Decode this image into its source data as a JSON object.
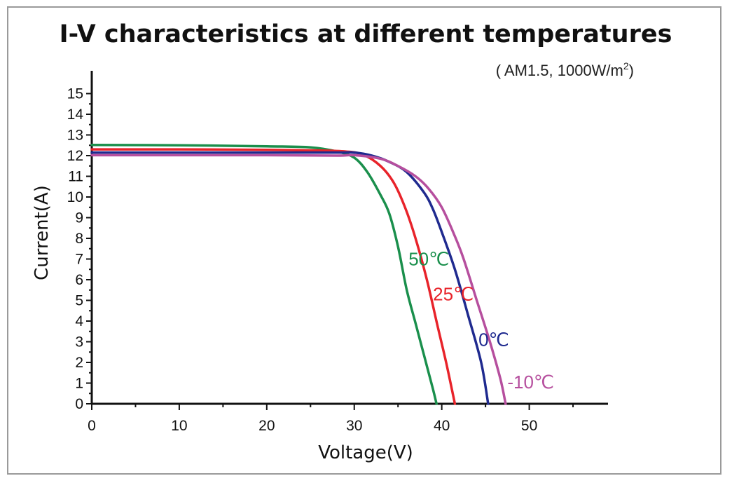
{
  "chart_data": {
    "type": "line",
    "title": "I-V characteristics at different temperatures",
    "subtitle": {
      "prefix": "( AM1.5,  1000W/m",
      "sup": "2",
      "suffix": ")"
    },
    "xlabel": "Voltage(V)",
    "ylabel": "Current(A)",
    "xlim": [
      0,
      59
    ],
    "ylim": [
      0,
      16
    ],
    "xticks": [
      0,
      10,
      20,
      30,
      40,
      50
    ],
    "xminor": [
      5,
      15,
      25,
      35,
      45,
      55
    ],
    "yticks": [
      0,
      1,
      2,
      3,
      4,
      5,
      6,
      7,
      8,
      9,
      10,
      11,
      12,
      13,
      14,
      15
    ],
    "series": [
      {
        "name": "50℃",
        "color": "#1a8f4c",
        "points": [
          [
            0,
            12.52
          ],
          [
            10,
            12.5
          ],
          [
            20,
            12.45
          ],
          [
            25,
            12.4
          ],
          [
            28,
            12.2
          ],
          [
            30,
            11.9
          ],
          [
            31.5,
            11.2
          ],
          [
            33,
            10.1
          ],
          [
            34,
            9.2
          ],
          [
            35,
            7.6
          ],
          [
            36,
            5.5
          ],
          [
            37,
            3.9
          ],
          [
            38,
            2.3
          ],
          [
            39,
            0.7
          ],
          [
            39.4,
            0
          ]
        ]
      },
      {
        "name": "25℃",
        "color": "#e8232a",
        "points": [
          [
            0,
            12.3
          ],
          [
            10,
            12.3
          ],
          [
            20,
            12.28
          ],
          [
            26,
            12.25
          ],
          [
            29,
            12.2
          ],
          [
            31,
            12.05
          ],
          [
            33,
            11.5
          ],
          [
            34.5,
            10.7
          ],
          [
            35.8,
            9.5
          ],
          [
            37,
            8.0
          ],
          [
            38.3,
            6.0
          ],
          [
            39.5,
            3.8
          ],
          [
            40.5,
            2.0
          ],
          [
            41.5,
            0
          ]
        ]
      },
      {
        "name": "0℃",
        "color": "#1f2a8f",
        "points": [
          [
            0,
            12.15
          ],
          [
            10,
            12.15
          ],
          [
            20,
            12.15
          ],
          [
            28,
            12.15
          ],
          [
            30,
            12.15
          ],
          [
            32,
            12.0
          ],
          [
            34,
            11.7
          ],
          [
            36,
            11.2
          ],
          [
            38,
            10.2
          ],
          [
            39,
            9.4
          ],
          [
            40,
            8.3
          ],
          [
            41.5,
            6.5
          ],
          [
            43,
            4.3
          ],
          [
            44.5,
            2.0
          ],
          [
            45.3,
            0
          ]
        ]
      },
      {
        "name": "-10℃",
        "color": "#b64f9e",
        "points": [
          [
            0,
            12.02
          ],
          [
            10,
            12.02
          ],
          [
            20,
            12.02
          ],
          [
            28,
            12.0
          ],
          [
            30,
            12.02
          ],
          [
            33,
            11.85
          ],
          [
            35,
            11.5
          ],
          [
            37,
            11.0
          ],
          [
            38.5,
            10.4
          ],
          [
            40,
            9.5
          ],
          [
            41.5,
            8.1
          ],
          [
            42.5,
            7.0
          ],
          [
            44,
            5.0
          ],
          [
            45.5,
            3.0
          ],
          [
            46.7,
            1.2
          ],
          [
            47.3,
            0
          ]
        ]
      }
    ],
    "labels": [
      {
        "text": "50℃",
        "color": "#1a8f4c"
      },
      {
        "text": "25℃",
        "color": "#e8232a"
      },
      {
        "text": "0℃",
        "color": "#1f2a8f"
      },
      {
        "text": "-10℃",
        "color": "#b64f9e"
      }
    ],
    "grid": false
  }
}
